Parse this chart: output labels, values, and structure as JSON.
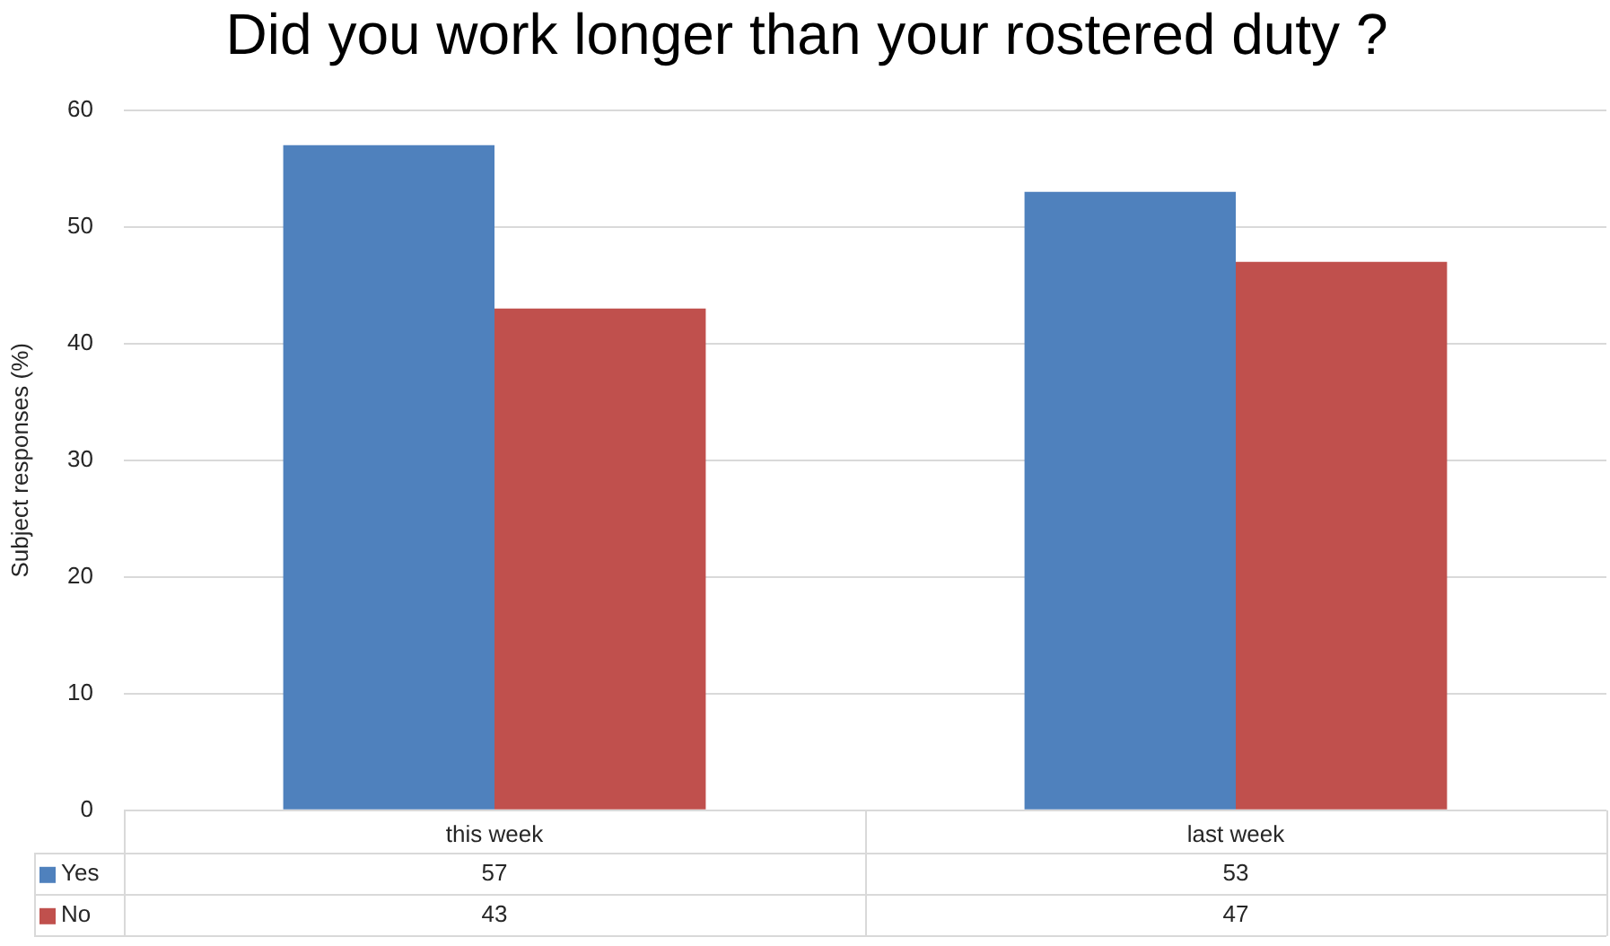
{
  "chart_data": {
    "type": "bar",
    "title": "Did you work longer than your rostered duty ?",
    "ylabel": "Subject responses (%)",
    "categories": [
      "this week",
      "last week"
    ],
    "series": [
      {
        "name": "Yes",
        "color": "#4f81bd",
        "values": [
          57,
          53
        ]
      },
      {
        "name": "No",
        "color": "#c0504d",
        "values": [
          43,
          47
        ]
      }
    ],
    "ylim": [
      0,
      60
    ],
    "yticks": [
      0,
      10,
      20,
      30,
      40,
      50,
      60
    ],
    "grid": "y",
    "legend": "bottom left",
    "data_labels": true
  }
}
